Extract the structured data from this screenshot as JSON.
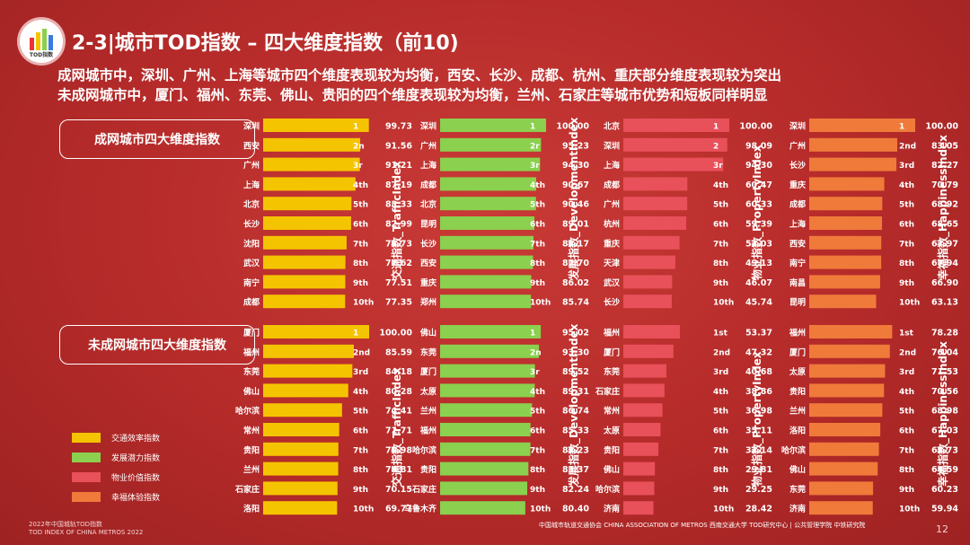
{
  "header": {
    "title": "2-3|城市TOD指数 – 四大维度指数（前10)",
    "logo_text": "TOD指数",
    "subtitle1": "成网城市中，深圳、广州、上海等城市四个维度表现较为均衡，西安、长沙、成都、杭州、重庆部分维度表现较为突出",
    "subtitle2": "未成网城市中，厦门、福州、东莞、佛山、贵阳的四个维度表现较为均衡，兰州、石家庄等城市优势和短板同样明显"
  },
  "groups": {
    "networked": "成网城市四大维度指数",
    "non_networked": "未成网城市四大维度指数"
  },
  "legend": [
    {
      "label": "交通效率指数",
      "color": "#f5c400"
    },
    {
      "label": "发展潜力指数",
      "color": "#8bd04e"
    },
    {
      "label": "物业价值指数",
      "color": "#e8505a"
    },
    {
      "label": "幸福体验指数",
      "color": "#f07a3a"
    }
  ],
  "footer": {
    "left1": "2022年中国城轨TOD指数",
    "left2": "TOD INDEX OF CHINA METROS 2022",
    "right": "中国城市轨道交通协会 CHINA ASSOCIATION OF METROS   西南交通大学   TOD研究中心 | 公共管理学院   中铁研究院",
    "page": "12"
  },
  "chart_data": [
    {
      "type": "bar",
      "group": "networked",
      "title": "交通指数_TrafficIndex",
      "color": "#f5c400",
      "categories": [
        "深圳",
        "西安",
        "广州",
        "上海",
        "北京",
        "长沙",
        "沈阳",
        "武汉",
        "南宁",
        "成都"
      ],
      "ranks": [
        "1",
        "2n",
        "3r",
        "4th",
        "5th",
        "6th",
        "7th",
        "8th",
        "9th",
        "10th"
      ],
      "values": [
        99.73,
        91.56,
        91.21,
        87.19,
        83.33,
        82.99,
        78.73,
        77.62,
        77.51,
        77.35
      ]
    },
    {
      "type": "bar",
      "group": "networked",
      "title": "发展指数_DevelopmentIndex",
      "color": "#8bd04e",
      "categories": [
        "深圳",
        "广州",
        "上海",
        "成都",
        "北京",
        "昆明",
        "长沙",
        "西安",
        "重庆",
        "郑州"
      ],
      "ranks": [
        "1",
        "2r",
        "3r",
        "4th",
        "5th",
        "6th",
        "7th",
        "8th",
        "9th",
        "10th"
      ],
      "values": [
        100.0,
        95.23,
        94.3,
        90.67,
        90.46,
        89.01,
        88.17,
        87.7,
        86.02,
        85.74
      ]
    },
    {
      "type": "bar",
      "group": "networked",
      "title": "物业指数_PropertyIndex",
      "color": "#e8505a",
      "categories": [
        "北京",
        "深圳",
        "上海",
        "成都",
        "广州",
        "杭州",
        "重庆",
        "天津",
        "武汉",
        "长沙"
      ],
      "ranks": [
        "1",
        "2",
        "3r",
        "4th",
        "5th",
        "6th",
        "7th",
        "8th",
        "9th",
        "10th"
      ],
      "values": [
        100.0,
        98.09,
        94.3,
        60.47,
        60.33,
        59.39,
        53.03,
        49.13,
        46.07,
        45.74
      ]
    },
    {
      "type": "bar",
      "group": "networked",
      "title": "幸福指数_HappinessIndex",
      "color": "#f07a3a",
      "categories": [
        "深圳",
        "广州",
        "长沙",
        "重庆",
        "成都",
        "上海",
        "西安",
        "南宁",
        "南昌",
        "昆明"
      ],
      "ranks": [
        "1",
        "2nd",
        "3rd",
        "4th",
        "5th",
        "6th",
        "7th",
        "8th",
        "9th",
        "10th"
      ],
      "values": [
        100.0,
        83.05,
        82.27,
        70.79,
        68.92,
        68.65,
        67.97,
        67.94,
        66.9,
        63.13
      ]
    },
    {
      "type": "bar",
      "group": "non_networked",
      "title": "交通指数_TrafficIndex",
      "color": "#f5c400",
      "categories": [
        "厦门",
        "福州",
        "东莞",
        "佛山",
        "哈尔滨",
        "常州",
        "贵阳",
        "兰州",
        "石家庄",
        "洛阳"
      ],
      "ranks": [
        "1",
        "2nd",
        "3rd",
        "4th",
        "5th",
        "6th",
        "7th",
        "8th",
        "9th",
        "10th"
      ],
      "values": [
        100.0,
        85.59,
        84.18,
        80.28,
        74.41,
        71.71,
        70.98,
        70.81,
        70.15,
        69.77
      ]
    },
    {
      "type": "bar",
      "group": "non_networked",
      "title": "发展指数_DevelopmentIndex",
      "color": "#8bd04e",
      "categories": [
        "佛山",
        "东莞",
        "厦门",
        "太原",
        "兰州",
        "福州",
        "哈尔滨",
        "贵阳",
        "石家庄",
        "乌鲁木齐"
      ],
      "ranks": [
        "1",
        "2n",
        "3r",
        "4th",
        "5th",
        "6th",
        "7th",
        "8th",
        "9th",
        "10th"
      ],
      "values": [
        95.02,
        93.3,
        89.52,
        89.31,
        86.74,
        85.33,
        85.23,
        83.37,
        82.24,
        80.4
      ]
    },
    {
      "type": "bar",
      "group": "non_networked",
      "title": "物业指数_PropertyIndex",
      "color": "#e8505a",
      "categories": [
        "福州",
        "厦门",
        "东莞",
        "石家庄",
        "常州",
        "太原",
        "贵阳",
        "佛山",
        "哈尔滨",
        "济南"
      ],
      "ranks": [
        "1st",
        "2nd",
        "3rd",
        "4th",
        "5th",
        "6th",
        "7th",
        "8th",
        "9th",
        "10th"
      ],
      "values": [
        53.37,
        47.32,
        40.68,
        38.86,
        36.98,
        35.11,
        33.14,
        29.81,
        29.25,
        28.42
      ]
    },
    {
      "type": "bar",
      "group": "non_networked",
      "title": "幸福指数_HappinessIndex",
      "color": "#f07a3a",
      "categories": [
        "福州",
        "厦门",
        "太原",
        "贵阳",
        "兰州",
        "洛阳",
        "哈尔滨",
        "佛山",
        "东莞",
        "济南"
      ],
      "ranks": [
        "1st",
        "2nd",
        "3rd",
        "4th",
        "5th",
        "6th",
        "7th",
        "8th",
        "9th",
        "10th"
      ],
      "values": [
        78.28,
        76.04,
        71.53,
        70.56,
        68.98,
        67.03,
        65.73,
        64.59,
        60.23,
        59.94
      ]
    }
  ]
}
